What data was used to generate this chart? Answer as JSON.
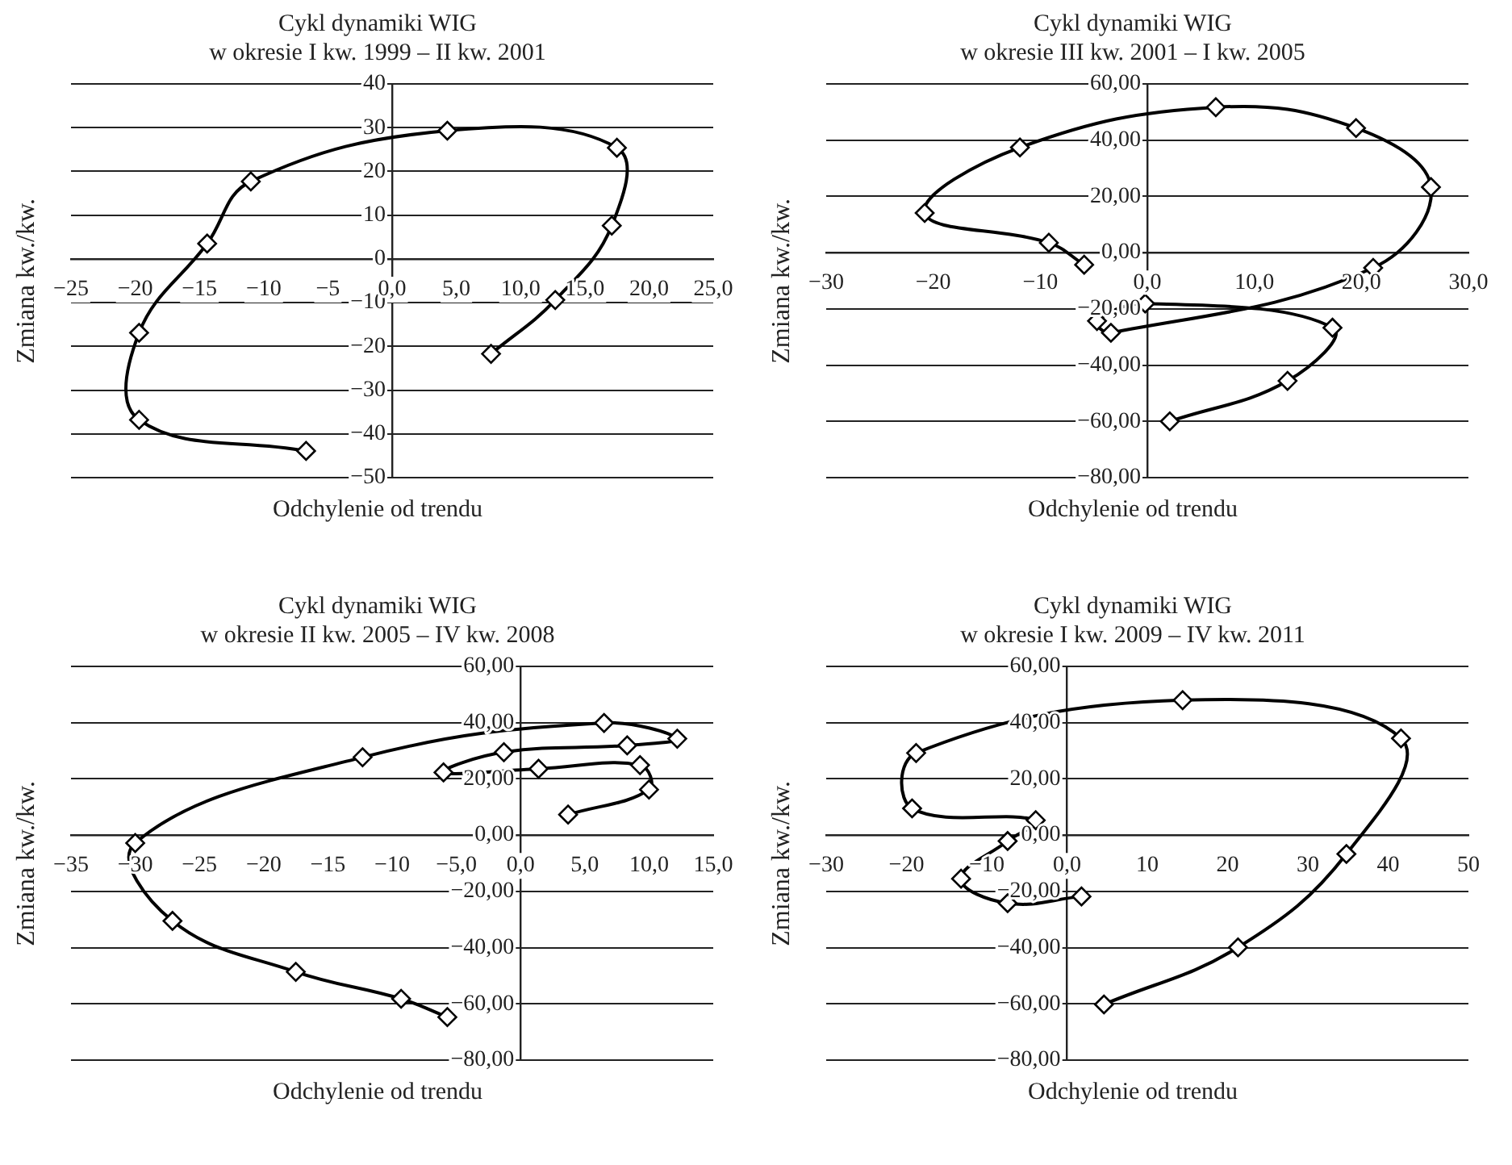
{
  "chart_data": [
    {
      "type": "line",
      "title": "Cykl dynamiki WIG",
      "subtitle": "w okresie I kw. 1999 – II kw. 2001",
      "xlabel": "Odchylenie od trendu",
      "ylabel": "Zmiana kw./kw.",
      "color": "#000000",
      "marker": "diamond",
      "grid": "y",
      "x": [
        -6.7,
        -19.7,
        -19.7,
        -14.4,
        -11.0,
        4.3,
        17.5,
        17.1,
        12.7,
        7.7
      ],
      "values": [
        -43.9,
        -36.8,
        -16.9,
        3.5,
        17.7,
        29.3,
        25.4,
        7.6,
        -9.4,
        -21.7
      ],
      "xlim": [
        -25,
        25
      ],
      "xticks": [
        {
          "value": -25,
          "label": "−25"
        },
        {
          "value": -20,
          "label": "−20"
        },
        {
          "value": -15,
          "label": "−15"
        },
        {
          "value": -10,
          "label": "−10"
        },
        {
          "value": -5,
          "label": "−5"
        },
        {
          "value": 0,
          "label": "0,0"
        },
        {
          "value": 5,
          "label": "5,0"
        },
        {
          "value": 10,
          "label": "10,0"
        },
        {
          "value": 15,
          "label": "15,0"
        },
        {
          "value": 20,
          "label": "20,0"
        },
        {
          "value": 25,
          "label": "25,0"
        }
      ],
      "ylim": [
        -50,
        40
      ],
      "yticks": [
        {
          "value": -50,
          "label": "−50"
        },
        {
          "value": -40,
          "label": "−40"
        },
        {
          "value": -30,
          "label": "−30"
        },
        {
          "value": -20,
          "label": "−20"
        },
        {
          "value": -10,
          "label": "−10"
        },
        0,
        10,
        20,
        30,
        40
      ]
    },
    {
      "type": "line",
      "title": "Cykl dynamiki WIG",
      "subtitle": "w okresie III kw. 2001 – I kw. 2005",
      "xlabel": "Odchylenie od trendu",
      "ylabel": "Zmiana kw./kw.",
      "color": "#000000",
      "marker": "diamond",
      "grid": "y",
      "x": [
        2.1,
        13.1,
        17.3,
        -0.2,
        -4.7,
        -3.4,
        21.1,
        26.5,
        19.5,
        6.4,
        -11.9,
        -20.8,
        -9.2,
        -5.9
      ],
      "values": [
        -60,
        -45.6,
        -26.7,
        -18.1,
        -24.3,
        -28.5,
        -5.4,
        23.3,
        44.3,
        51.7,
        37.4,
        14.1,
        3.5,
        -4.3
      ],
      "xlim": [
        -30,
        30
      ],
      "xticks": [
        {
          "value": -30,
          "label": "−30"
        },
        {
          "value": -20,
          "label": "−20"
        },
        {
          "value": -10,
          "label": "−10"
        },
        {
          "value": 0,
          "label": "0,0"
        },
        {
          "value": 10,
          "label": "10,0"
        },
        {
          "value": 20,
          "label": "20,0"
        },
        {
          "value": 30,
          "label": "30,0"
        }
      ],
      "ylim": [
        -80,
        60
      ],
      "yticks": [
        {
          "value": -80,
          "label": "−80,00"
        },
        {
          "value": -60,
          "label": "−60,00"
        },
        {
          "value": -40,
          "label": "−40,00"
        },
        {
          "value": -20,
          "label": "−20,00"
        },
        {
          "value": 0,
          "label": "0,00"
        },
        {
          "value": 20,
          "label": "20,00"
        },
        {
          "value": 40,
          "label": "40,00"
        },
        {
          "value": 60,
          "label": "60,00"
        }
      ]
    },
    {
      "type": "line",
      "title": "Cykl dynamiki WIG",
      "subtitle": "w okresie II kw. 2005 – IV kw. 2008",
      "xlabel": "Odchylenie od trendu",
      "ylabel": "Zmiana kw./kw.",
      "color": "#000000",
      "marker": "diamond",
      "grid": "y",
      "x": [
        3.7,
        10.0,
        9.3,
        1.4,
        -6.0,
        -1.3,
        8.3,
        12.2,
        6.5,
        -12.3,
        -30.0,
        -27.1,
        -17.5,
        -9.3,
        -5.7
      ],
      "values": [
        7.3,
        16.2,
        24.9,
        23.6,
        22.3,
        29.5,
        31.9,
        34.3,
        39.9,
        27.7,
        -2.8,
        -30.5,
        -48.6,
        -58.2,
        -64.7
      ],
      "xlim": [
        -35,
        15
      ],
      "xticks": [
        {
          "value": -35,
          "label": "−35"
        },
        {
          "value": -30,
          "label": "−30"
        },
        {
          "value": -25,
          "label": "−25"
        },
        {
          "value": -20,
          "label": "−20"
        },
        {
          "value": -15,
          "label": "−15"
        },
        {
          "value": -10,
          "label": "−10"
        },
        {
          "value": -5,
          "label": "−5,0"
        },
        {
          "value": 0,
          "label": "0,0"
        },
        {
          "value": 5,
          "label": "5,0"
        },
        {
          "value": 10,
          "label": "10,0"
        },
        {
          "value": 15,
          "label": "15,0"
        }
      ],
      "ylim": [
        -80,
        60
      ],
      "yticks": [
        {
          "value": -80,
          "label": "−80,00"
        },
        {
          "value": -60,
          "label": "−60,00"
        },
        {
          "value": -40,
          "label": "−40,00"
        },
        {
          "value": -20,
          "label": "−20,00"
        },
        {
          "value": 0,
          "label": "0,00"
        },
        {
          "value": 20,
          "label": "20,00"
        },
        {
          "value": 40,
          "label": "40,00"
        },
        {
          "value": 60,
          "label": "60,00"
        }
      ]
    },
    {
      "type": "line",
      "title": "Cykl dynamiki WIG",
      "subtitle": "w okresie I kw. 2009 – IV kw. 2011",
      "xlabel": "Odchylenie od trendu",
      "ylabel": "Zmiana kw./kw.",
      "color": "#000000",
      "marker": "diamond",
      "grid": "y",
      "x": [
        4.6,
        21.3,
        34.8,
        41.6,
        14.4,
        -18.8,
        -19.3,
        -3.9,
        -7.4,
        -13.2,
        -7.4,
        1.8
      ],
      "values": [
        -60.2,
        -39.9,
        -6.7,
        34.4,
        48.0,
        29.2,
        9.5,
        5.3,
        -2.1,
        -15.5,
        -24.2,
        -21.8
      ],
      "xlim": [
        -30,
        50
      ],
      "xticks": [
        {
          "value": -30,
          "label": "−30"
        },
        {
          "value": -20,
          "label": "−20"
        },
        {
          "value": -10,
          "label": "−10"
        },
        {
          "value": 0,
          "label": "0,0"
        },
        10,
        20,
        30,
        40,
        50
      ],
      "ylim": [
        -80,
        60
      ],
      "yticks": [
        {
          "value": -80,
          "label": "−80,00"
        },
        {
          "value": -60,
          "label": "−60,00"
        },
        {
          "value": -40,
          "label": "−40,00"
        },
        {
          "value": -20,
          "label": "−20,00"
        },
        {
          "value": 0,
          "label": "0,00"
        },
        {
          "value": 20,
          "label": "20,00"
        },
        {
          "value": 40,
          "label": "40,00"
        },
        {
          "value": 60,
          "label": "60,00"
        }
      ]
    }
  ]
}
